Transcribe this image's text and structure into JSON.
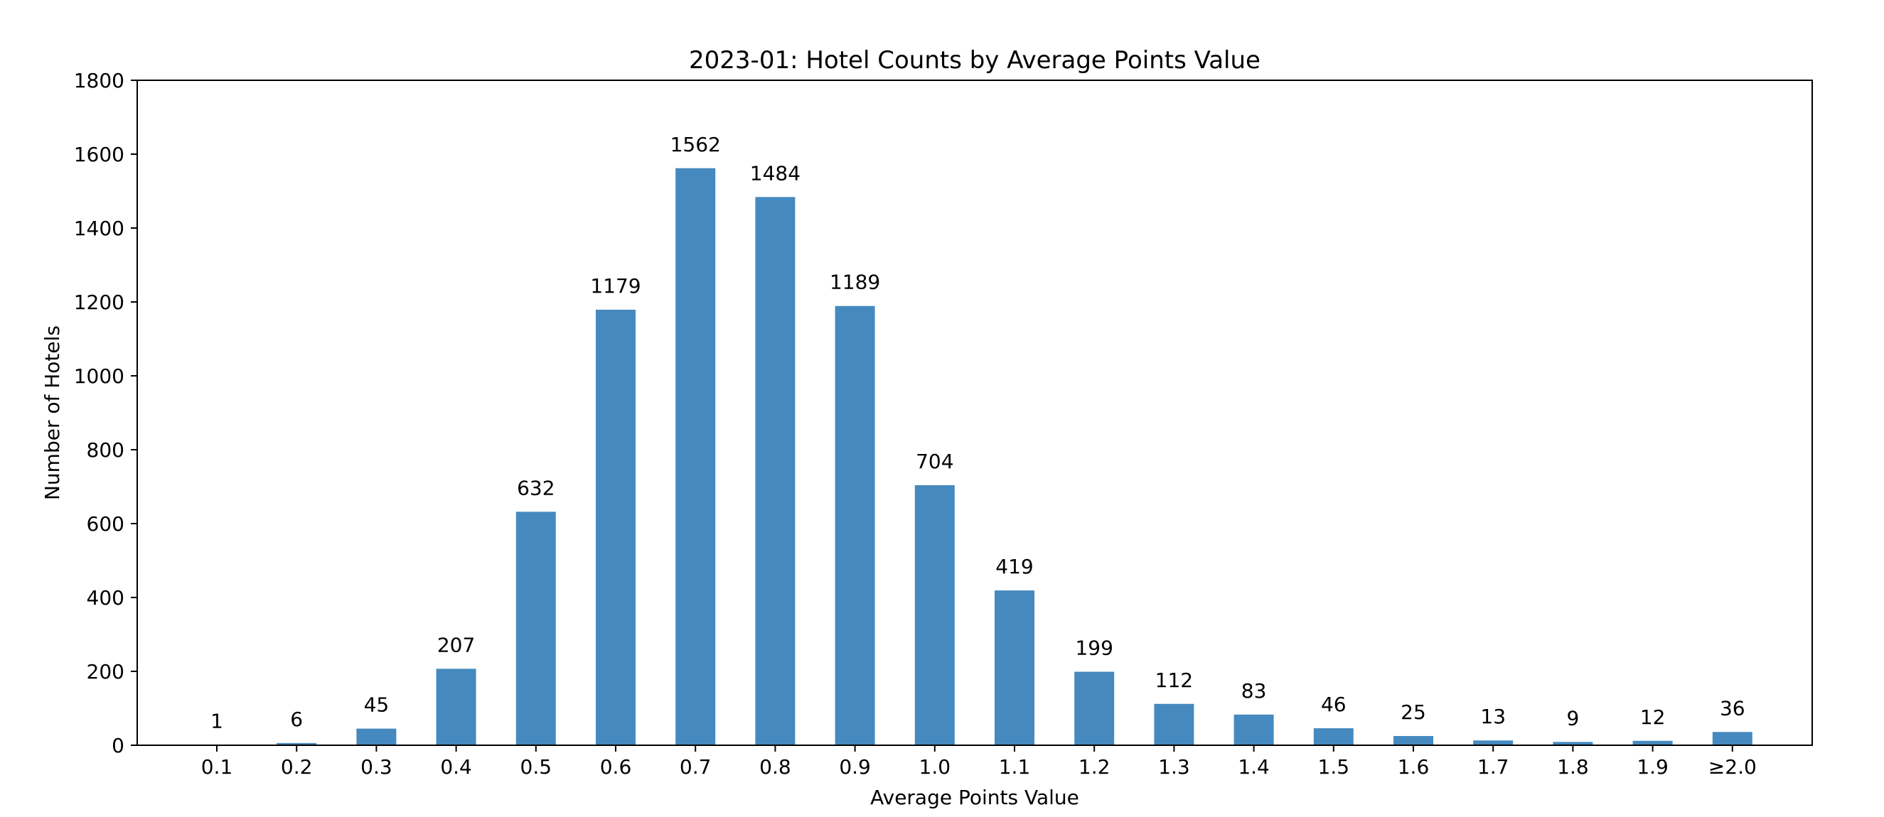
{
  "chart_data": {
    "type": "bar",
    "title": "2023-01: Hotel Counts by Average Points Value",
    "xlabel": "Average Points Value",
    "ylabel": "Number of Hotels",
    "categories": [
      "0.1",
      "0.2",
      "0.3",
      "0.4",
      "0.5",
      "0.6",
      "0.7",
      "0.8",
      "0.9",
      "1.0",
      "1.1",
      "1.2",
      "1.3",
      "1.4",
      "1.5",
      "1.6",
      "1.7",
      "1.8",
      "1.9",
      "≥2.0"
    ],
    "values": [
      1,
      6,
      45,
      207,
      632,
      1179,
      1562,
      1484,
      1189,
      704,
      419,
      199,
      112,
      83,
      46,
      25,
      13,
      9,
      12,
      36
    ],
    "data_labels": [
      "1",
      "6",
      "45",
      "207",
      "632",
      "1179",
      "1562",
      "1484",
      "1189",
      "704",
      "419",
      "199",
      "112",
      "83",
      "46",
      "25",
      "13",
      "9",
      "12",
      "36"
    ],
    "ylim": [
      0,
      1800
    ],
    "yticks": [
      0,
      200,
      400,
      600,
      800,
      1000,
      1200,
      1400,
      1600,
      1800
    ],
    "ytick_labels": [
      "0",
      "200",
      "400",
      "600",
      "800",
      "1000",
      "1200",
      "1400",
      "1600",
      "1800"
    ],
    "grid": false,
    "legend": "none",
    "bar_color": "#4589be",
    "axis_color": "#000000"
  }
}
